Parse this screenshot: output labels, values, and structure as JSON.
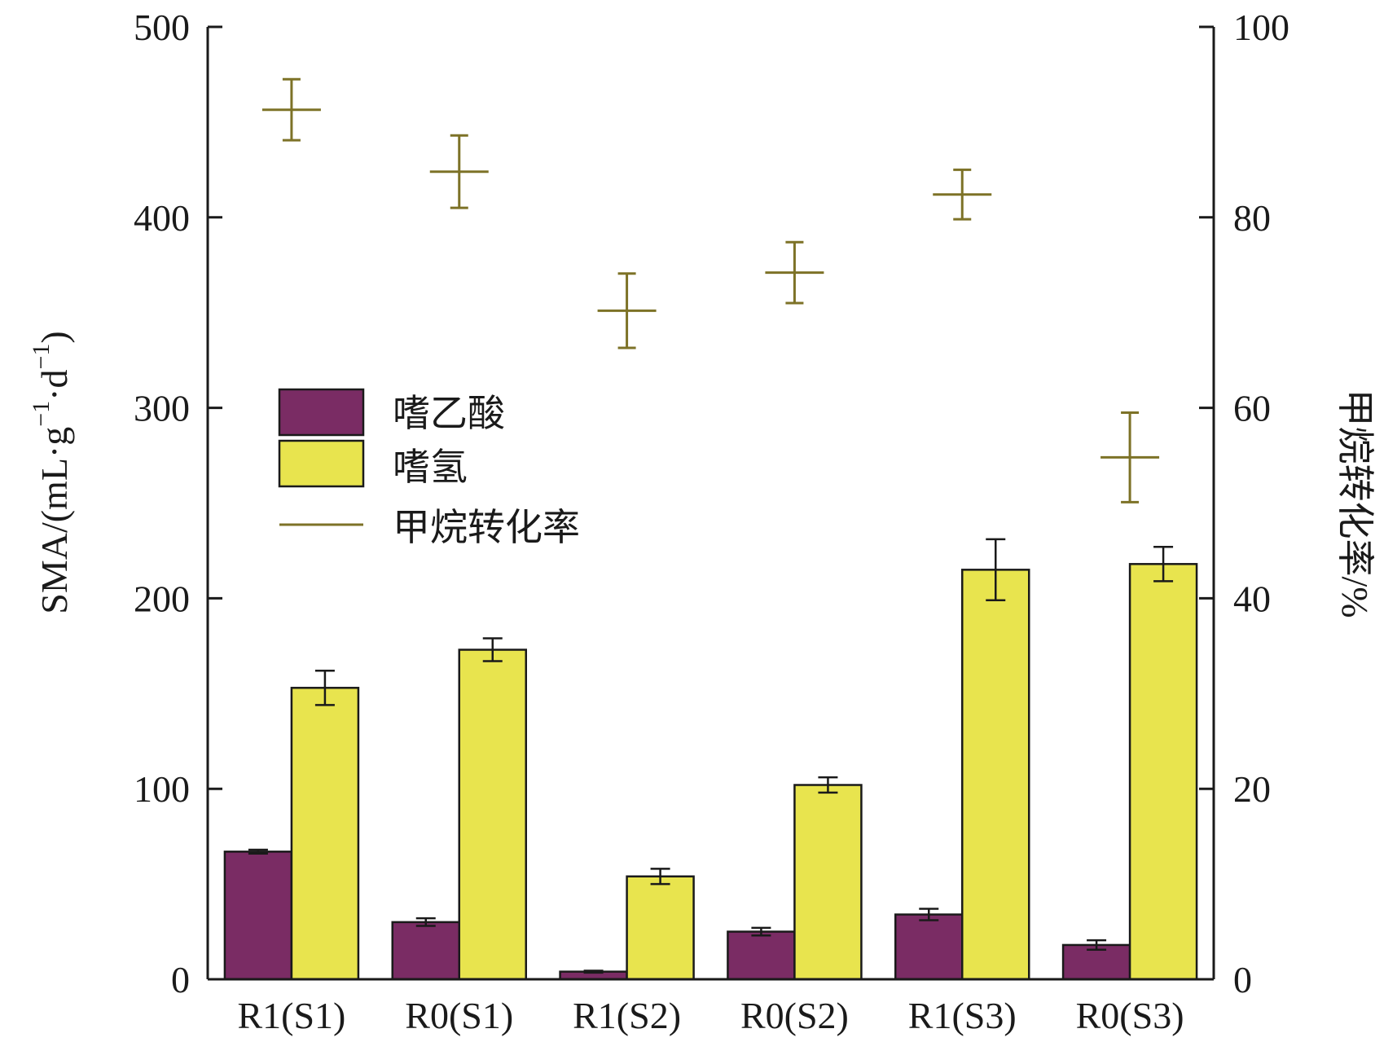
{
  "chart_data": {
    "type": "bar",
    "categories": [
      "R1(S1)",
      "R0(S1)",
      "R1(S2)",
      "R0(S2)",
      "R1(S3)",
      "R0(S3)"
    ],
    "series": [
      {
        "name": "嗜乙酸",
        "color": "#7a2c64",
        "axis": "left",
        "values": [
          67,
          30,
          4,
          25,
          34,
          18
        ],
        "errors": [
          1,
          2,
          0.5,
          2,
          3,
          2.5
        ]
      },
      {
        "name": "嗜氢",
        "color": "#e8e44e",
        "axis": "left",
        "values": [
          153,
          173,
          54,
          102,
          215,
          218
        ],
        "errors": [
          9,
          6,
          4,
          4,
          16,
          9
        ]
      },
      {
        "name": "甲烷转化率",
        "type": "error-cross",
        "color": "#7d7227",
        "axis": "right",
        "values": [
          91.3,
          84.8,
          70.2,
          74.2,
          82.4,
          54.8
        ],
        "errors": [
          3.2,
          3.8,
          3.9,
          3.2,
          2.6,
          4.7
        ]
      }
    ],
    "ylabel": "SMA/(mL·g⁻¹·d⁻¹)",
    "ylabel_parts": {
      "main": "SMA/(mL·g",
      "exp1": "−1",
      "mid": "·d",
      "exp2": "−1",
      "close": ")"
    },
    "y2label": "甲烷转化率/%",
    "ylim": [
      0,
      500
    ],
    "y2lim": [
      0,
      100
    ],
    "yticks": [
      "0",
      "100",
      "200",
      "300",
      "400",
      "500"
    ],
    "y2ticks": [
      "0",
      "20",
      "40",
      "60",
      "80",
      "100"
    ],
    "grid": false,
    "legend_position": "center-left"
  }
}
